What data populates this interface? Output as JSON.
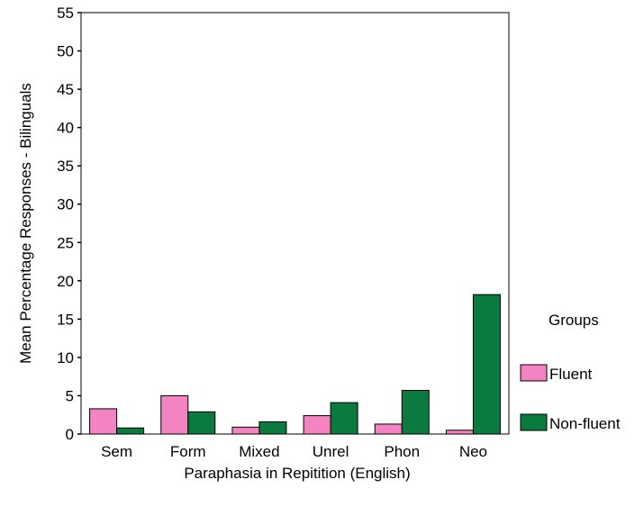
{
  "chart_data": {
    "type": "bar",
    "title": "",
    "xlabel": "Paraphasia in Repitition (English)",
    "ylabel": "Mean Percentage Responses - Bilinguals",
    "categories": [
      "Sem",
      "Form",
      "Mixed",
      "Unrel",
      "Phon",
      "Neo"
    ],
    "ylim": [
      0,
      55
    ],
    "yticks": [
      "55",
      "50",
      "45",
      "40",
      "35",
      "30",
      "25",
      "20",
      "15",
      "10",
      "5",
      "0"
    ],
    "grid": false,
    "legend": {
      "title": "Groups",
      "placement": "right"
    },
    "series": [
      {
        "name": "Fluent",
        "color": "#f383c1",
        "values": [
          3.3,
          5.0,
          0.9,
          2.4,
          1.3,
          0.5
        ]
      },
      {
        "name": "Non-fluent",
        "color": "#0b7a3e",
        "values": [
          0.8,
          2.9,
          1.6,
          4.1,
          5.7,
          18.2
        ]
      }
    ]
  }
}
